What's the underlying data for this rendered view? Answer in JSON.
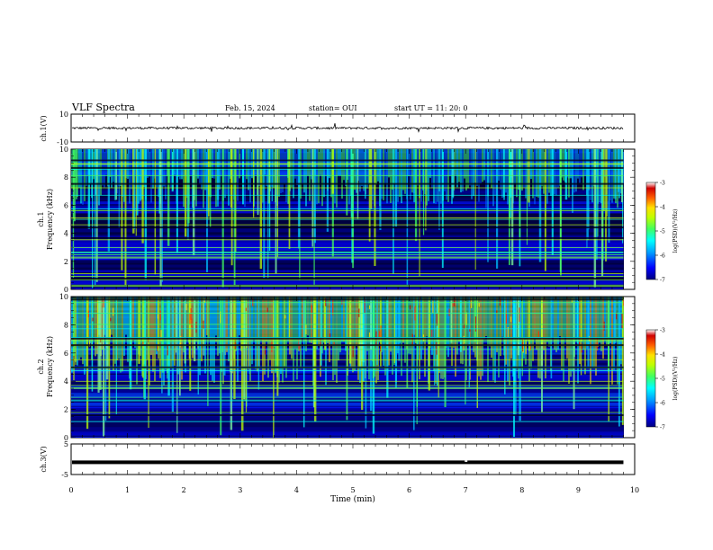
{
  "header": {
    "title": "VLF Spectra",
    "date": "Feb. 15, 2024",
    "station": "station= OUI",
    "start": "start  UT =   11: 20: 0"
  },
  "panels": {
    "ch1": {
      "ylabel": "ch.1(V)",
      "yticks": [
        {
          "v": 10,
          "t": "10"
        },
        {
          "v": -10,
          "t": "-10"
        }
      ],
      "ylim": [
        -10,
        10
      ],
      "baseline": 0
    },
    "spec1": {
      "ylabel_line1": "ch.1",
      "ylabel_line2": "Frequency (kHz)",
      "yticks": [
        {
          "v": 0,
          "t": "0"
        },
        {
          "v": 2,
          "t": "2"
        },
        {
          "v": 4,
          "t": "4"
        },
        {
          "v": 6,
          "t": "6"
        },
        {
          "v": 8,
          "t": "8"
        },
        {
          "v": 10,
          "t": "10"
        }
      ],
      "ylim": [
        0,
        10
      ]
    },
    "spec2": {
      "ylabel_line1": "ch.2",
      "ylabel_line2": "Frequency (kHz)",
      "yticks": [
        {
          "v": 0,
          "t": "0"
        },
        {
          "v": 2,
          "t": "2"
        },
        {
          "v": 4,
          "t": "4"
        },
        {
          "v": 6,
          "t": "6"
        },
        {
          "v": 8,
          "t": "8"
        },
        {
          "v": 10,
          "t": "10"
        }
      ],
      "ylim": [
        0,
        10
      ]
    },
    "ch3": {
      "ylabel": "ch.3(V)",
      "yticks": [
        {
          "v": 5,
          "t": "5"
        },
        {
          "v": -5,
          "t": "-5"
        }
      ],
      "ylim": [
        -5,
        5
      ],
      "level": -1
    }
  },
  "xaxis": {
    "label": "Time (min)",
    "ticks": [
      "0",
      "1",
      "2",
      "3",
      "4",
      "5",
      "6",
      "7",
      "8",
      "9",
      "10"
    ],
    "xlim": [
      0,
      10
    ],
    "data_end": 9.8
  },
  "colorbar": {
    "label": "log(PSD)(V²/Hz)",
    "ticks": [
      {
        "v": -3,
        "t": "-3"
      },
      {
        "v": -4,
        "t": "-4"
      },
      {
        "v": -5,
        "t": "-5"
      },
      {
        "v": -6,
        "t": "-6"
      },
      {
        "v": -7,
        "t": "-7"
      }
    ],
    "range": [
      -7,
      -3
    ],
    "colors": [
      "#000080",
      "#0000ff",
      "#00a0ff",
      "#00ffff",
      "#40ff60",
      "#c0ff00",
      "#ffe000",
      "#ff6000",
      "#d00000",
      "#ffffff"
    ]
  },
  "chart_data": [
    {
      "type": "line",
      "name": "ch1-waveform",
      "xlabel": "",
      "ylabel": "ch.1(V)",
      "xlim": [
        0,
        10
      ],
      "ylim": [
        -10,
        10
      ],
      "x": [
        0,
        9.8
      ],
      "y": [
        0,
        0
      ]
    },
    {
      "type": "heatmap",
      "name": "ch1-spectrogram",
      "ylabel": "ch.1 Frequency (kHz)",
      "xlim": [
        0,
        10
      ],
      "ylim": [
        0,
        10
      ],
      "zlabel": "log(PSD)(V²/Hz)",
      "zlim": [
        -7,
        -3
      ]
    },
    {
      "type": "heatmap",
      "name": "ch2-spectrogram",
      "ylabel": "ch.2 Frequency (kHz)",
      "xlim": [
        0,
        10
      ],
      "ylim": [
        0,
        10
      ],
      "zlabel": "log(PSD)(V²/Hz)",
      "zlim": [
        -7,
        -3
      ]
    },
    {
      "type": "line",
      "name": "ch3-level",
      "xlabel": "Time (min)",
      "ylabel": "ch.3(V)",
      "xlim": [
        0,
        10
      ],
      "ylim": [
        -5,
        5
      ],
      "x": [
        0,
        9.8
      ],
      "y": [
        -1,
        -1
      ]
    }
  ]
}
